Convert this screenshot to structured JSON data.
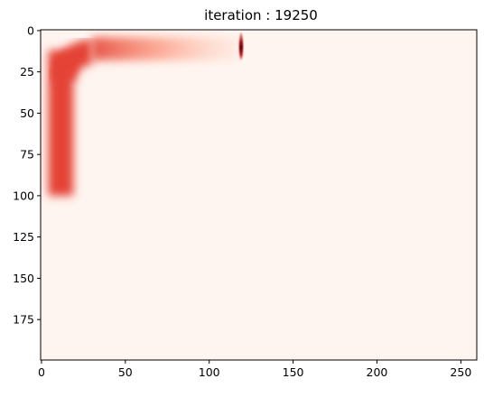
{
  "chart_data": {
    "type": "heatmap",
    "title": "iteration : 19250",
    "xlabel": "",
    "ylabel": "",
    "xlim": [
      -0.5,
      259.5
    ],
    "ylim": [
      199.5,
      -0.5
    ],
    "x_ticks": [
      0,
      50,
      100,
      150,
      200,
      250
    ],
    "y_ticks": [
      0,
      25,
      50,
      75,
      100,
      125,
      150,
      175
    ],
    "colormap": "Reds",
    "background_color": "#fff5f0",
    "grid": false,
    "legend": "none",
    "features": [
      {
        "name": "vertical-band",
        "kind": "band",
        "x_range": [
          4,
          19
        ],
        "y_range": [
          12,
          100
        ],
        "intensity": 0.62
      },
      {
        "name": "corner-arc",
        "kind": "arc",
        "center": [
          30,
          30
        ],
        "radius": 17,
        "intensity": 0.62
      },
      {
        "name": "horizontal-band",
        "kind": "band",
        "x_range": [
          30,
          118
        ],
        "y_range": [
          4,
          18
        ],
        "intensity_start": 0.62,
        "intensity_end": 0.08
      },
      {
        "name": "tip-spike",
        "kind": "spike",
        "x": 119,
        "y_range": [
          1,
          18
        ],
        "peak_y": 10,
        "intensity": 1.0
      }
    ]
  }
}
